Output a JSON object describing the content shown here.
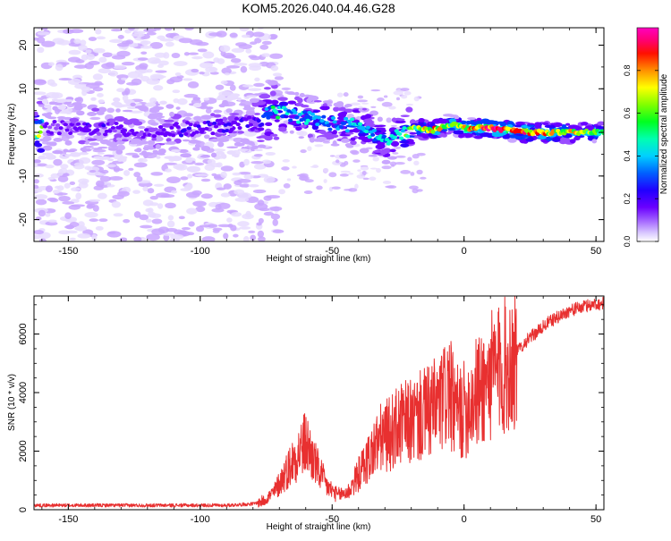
{
  "title": "KOM5.2026.040.04.46.G28",
  "chart_data": [
    {
      "type": "heatmap",
      "title": "KOM5.2026.040.04.46.G28",
      "xlabel": "Height of straight line (km)",
      "ylabel": "Frequency (Hz)",
      "xlim": [
        -163,
        53
      ],
      "ylim": [
        -25,
        24
      ],
      "x_ticks": [
        -150,
        -100,
        -50,
        0,
        50
      ],
      "y_ticks": [
        -20,
        -10,
        0,
        10,
        20
      ],
      "colorbar": {
        "label": "Normalized spectral amplitude",
        "range": [
          0.0,
          1.0
        ],
        "ticks": [
          0.0,
          0.2,
          0.4,
          0.6,
          0.8
        ],
        "colors": [
          "#e8dcff",
          "#c9a6ff",
          "#9a4dff",
          "#6a00ff",
          "#2f00ff",
          "#0040ff",
          "#00b8ff",
          "#00ffd0",
          "#00ff40",
          "#7dff00",
          "#ffff00",
          "#ff8000",
          "#ff0000",
          "#ff0070",
          "#ff00c0"
        ]
      },
      "ridge": [
        {
          "x": -160,
          "freq": 1,
          "amp": 0.2
        },
        {
          "x": -140,
          "freq": 1,
          "amp": 0.25
        },
        {
          "x": -120,
          "freq": 0,
          "amp": 0.22
        },
        {
          "x": -100,
          "freq": 1,
          "amp": 0.25
        },
        {
          "x": -80,
          "freq": 2,
          "amp": 0.25
        },
        {
          "x": -72,
          "freq": 5,
          "amp": 0.5
        },
        {
          "x": -60,
          "freq": 3.5,
          "amp": 0.45
        },
        {
          "x": -50,
          "freq": 2,
          "amp": 0.4
        },
        {
          "x": -40,
          "freq": 1.5,
          "amp": 0.45
        },
        {
          "x": -30,
          "freq": -2,
          "amp": 0.45
        },
        {
          "x": -25,
          "freq": -1,
          "amp": 0.5
        },
        {
          "x": -20,
          "freq": 1,
          "amp": 0.6
        },
        {
          "x": -12,
          "freq": 0.5,
          "amp": 0.75
        },
        {
          "x": -5,
          "freq": 2,
          "amp": 0.6
        },
        {
          "x": 0,
          "freq": 1,
          "amp": 0.7
        },
        {
          "x": 10,
          "freq": 1,
          "amp": 0.85
        },
        {
          "x": 25,
          "freq": 0,
          "amp": 0.8
        },
        {
          "x": 35,
          "freq": 0,
          "amp": 0.7
        },
        {
          "x": 53,
          "freq": 0,
          "amp": 0.6
        }
      ]
    },
    {
      "type": "line",
      "xlabel": "Height of straight line (km)",
      "ylabel": "SNR (10 * v/v)",
      "xlim": [
        -163,
        53
      ],
      "ylim": [
        0,
        7300
      ],
      "x_ticks": [
        -150,
        -100,
        -50,
        0,
        50
      ],
      "y_ticks": [
        0,
        2000,
        4000,
        6000
      ],
      "line_color": "#e83030",
      "series": [
        {
          "x": [
            -163,
            -140,
            -120,
            -100,
            -90,
            -80,
            -76,
            -72,
            -68,
            -64,
            -60,
            -56,
            -52,
            -48,
            -44,
            -40,
            -36,
            -32,
            -28,
            -24,
            -20,
            -16,
            -12,
            -8,
            -6,
            -4,
            -2,
            0,
            4,
            8,
            12,
            16,
            20,
            24,
            28,
            32,
            36,
            40,
            44,
            48,
            53
          ],
          "y": [
            150,
            150,
            150,
            150,
            150,
            200,
            300,
            600,
            1200,
            1800,
            2300,
            1500,
            800,
            500,
            600,
            1200,
            1800,
            2400,
            2600,
            2900,
            3000,
            3200,
            3400,
            3700,
            4200,
            3500,
            3300,
            3400,
            3900,
            4300,
            4700,
            4900,
            5400,
            5800,
            6100,
            6400,
            6600,
            6800,
            6900,
            7000,
            7050
          ]
        }
      ]
    }
  ]
}
